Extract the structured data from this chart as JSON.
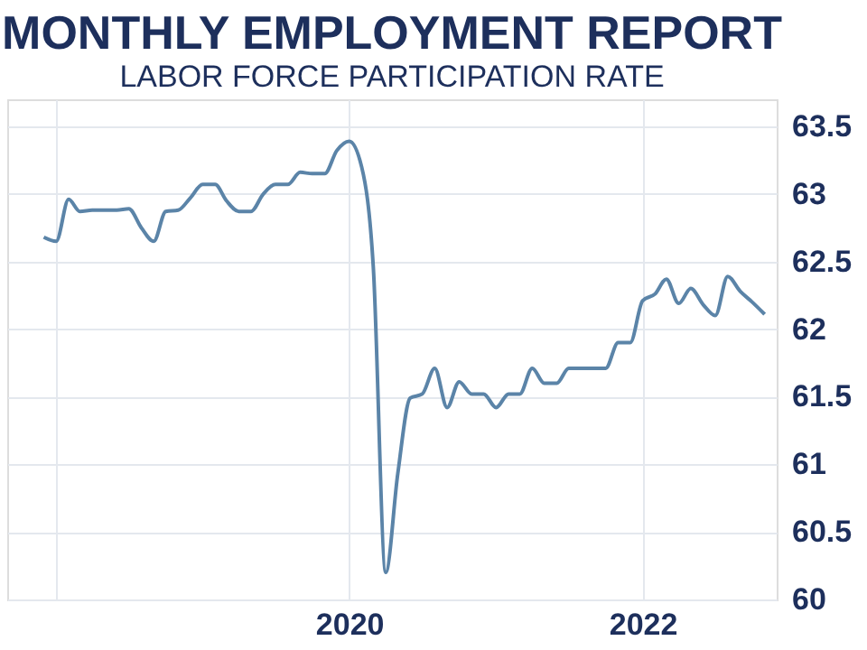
{
  "chart_data": {
    "type": "line",
    "title": "MONTHLY EMPLOYMENT REPORT",
    "subtitle": "LABOR FORCE PARTICIPATION RATE",
    "x": [
      "2017-12",
      "2018-01",
      "2018-02",
      "2018-03",
      "2018-04",
      "2018-05",
      "2018-06",
      "2018-07",
      "2018-08",
      "2018-09",
      "2018-10",
      "2018-11",
      "2018-12",
      "2019-01",
      "2019-02",
      "2019-03",
      "2019-04",
      "2019-05",
      "2019-06",
      "2019-07",
      "2019-08",
      "2019-09",
      "2019-10",
      "2019-11",
      "2019-12",
      "2020-01",
      "2020-02",
      "2020-03",
      "2020-04",
      "2020-05",
      "2020-06",
      "2020-07",
      "2020-08",
      "2020-09",
      "2020-10",
      "2020-11",
      "2020-12",
      "2021-01",
      "2021-02",
      "2021-03",
      "2021-04",
      "2021-05",
      "2021-06",
      "2021-07",
      "2021-08",
      "2021-09",
      "2021-10",
      "2021-11",
      "2021-12",
      "2022-01",
      "2022-02",
      "2022-03",
      "2022-04",
      "2022-05",
      "2022-06",
      "2022-07",
      "2022-08",
      "2022-09",
      "2022-10",
      "2022-11"
    ],
    "series": [
      {
        "color": "#5b84a8",
        "values": [
          62.68,
          62.65,
          62.96,
          62.87,
          62.88,
          62.88,
          62.88,
          62.89,
          62.75,
          62.65,
          62.87,
          62.88,
          62.97,
          63.07,
          63.07,
          62.95,
          62.87,
          62.87,
          63.0,
          63.07,
          63.07,
          63.16,
          63.15,
          63.15,
          63.32,
          63.39,
          63.2,
          62.46,
          60.2,
          60.93,
          61.49,
          61.52,
          61.71,
          61.42,
          61.61,
          61.52,
          61.52,
          61.42,
          61.52,
          61.52,
          61.71,
          61.6,
          61.6,
          61.71,
          61.71,
          61.71,
          61.71,
          61.9,
          61.9,
          62.21,
          62.26,
          62.37,
          62.19,
          62.3,
          62.18,
          62.1,
          62.39,
          62.28,
          62.2,
          62.11
        ]
      }
    ],
    "xlim": [
      "2017-09",
      "2022-12"
    ],
    "xticks": [
      {
        "value": "2018-01",
        "label": null
      },
      {
        "value": "2020-01",
        "label": "2020"
      },
      {
        "value": "2022-01",
        "label": "2022"
      }
    ],
    "ylim": [
      60,
      63.7
    ],
    "yticks": [
      60,
      60.5,
      61,
      61.5,
      62,
      62.5,
      63,
      63.5
    ],
    "grid": true,
    "legend": false
  }
}
